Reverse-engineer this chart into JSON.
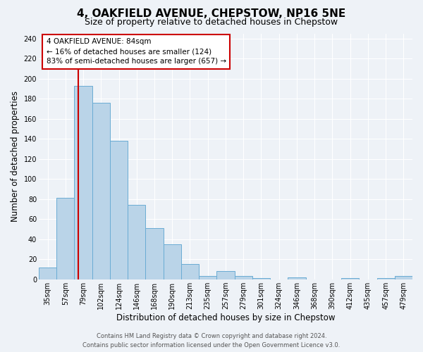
{
  "title": "4, OAKFIELD AVENUE, CHEPSTOW, NP16 5NE",
  "subtitle": "Size of property relative to detached houses in Chepstow",
  "xlabel": "Distribution of detached houses by size in Chepstow",
  "ylabel": "Number of detached properties",
  "bar_labels": [
    "35sqm",
    "57sqm",
    "79sqm",
    "102sqm",
    "124sqm",
    "146sqm",
    "168sqm",
    "190sqm",
    "213sqm",
    "235sqm",
    "257sqm",
    "279sqm",
    "301sqm",
    "324sqm",
    "346sqm",
    "368sqm",
    "390sqm",
    "412sqm",
    "435sqm",
    "457sqm",
    "479sqm"
  ],
  "bar_heights": [
    12,
    81,
    193,
    176,
    138,
    74,
    51,
    35,
    15,
    3,
    8,
    3,
    1,
    0,
    2,
    0,
    0,
    1,
    0,
    1,
    3
  ],
  "bar_color": "#bad4e8",
  "bar_edgecolor": "#6aacd4",
  "ylim": [
    0,
    245
  ],
  "yticks": [
    0,
    20,
    40,
    60,
    80,
    100,
    120,
    140,
    160,
    180,
    200,
    220,
    240
  ],
  "vline_color": "#cc0000",
  "annotation_title": "4 OAKFIELD AVENUE: 84sqm",
  "annotation_line1": "← 16% of detached houses are smaller (124)",
  "annotation_line2": "83% of semi-detached houses are larger (657) →",
  "annotation_box_color": "#ffffff",
  "annotation_box_edgecolor": "#cc0000",
  "footer_line1": "Contains HM Land Registry data © Crown copyright and database right 2024.",
  "footer_line2": "Contains public sector information licensed under the Open Government Licence v3.0.",
  "background_color": "#eef2f7",
  "grid_color": "#ffffff",
  "title_fontsize": 11,
  "subtitle_fontsize": 9,
  "tick_fontsize": 7,
  "ylabel_fontsize": 8.5,
  "xlabel_fontsize": 8.5,
  "footer_fontsize": 6,
  "annot_fontsize": 7.5
}
